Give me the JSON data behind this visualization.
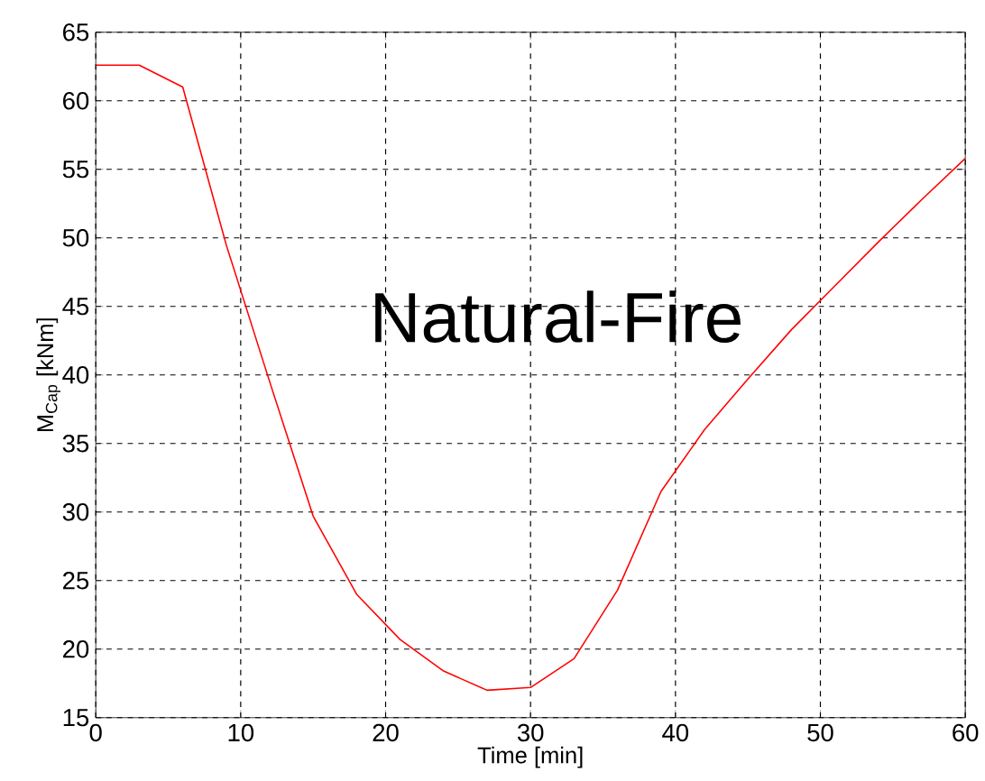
{
  "chart_data": {
    "type": "line",
    "xlabel": "Time   [min]",
    "ylabel": "M$_{Cap}$   [kNm]",
    "annotations": [
      "Natural-Fire"
    ],
    "x": [
      0,
      3,
      6,
      9,
      12,
      15,
      18,
      21,
      24,
      27,
      30,
      33,
      36,
      39,
      42,
      45,
      48,
      51,
      54,
      57,
      60
    ],
    "series": [
      {
        "color": "#ff0000",
        "values": [
          62.6,
          62.6,
          61,
          49.5,
          39.5,
          29.7,
          24,
          20.7,
          18.4,
          17,
          17.2,
          19.3,
          24.3,
          31.5,
          36,
          39.7,
          43.3,
          46.5,
          49.7,
          52.8,
          55.8
        ]
      }
    ],
    "xlim": [
      0,
      60
    ],
    "ylim": [
      15,
      65
    ],
    "xticks": [
      0,
      10,
      20,
      30,
      40,
      50,
      60
    ],
    "yticks": [
      15,
      20,
      25,
      30,
      35,
      40,
      45,
      50,
      55,
      60,
      65
    ],
    "grid": true,
    "line_style": "solid",
    "marker": "none"
  }
}
